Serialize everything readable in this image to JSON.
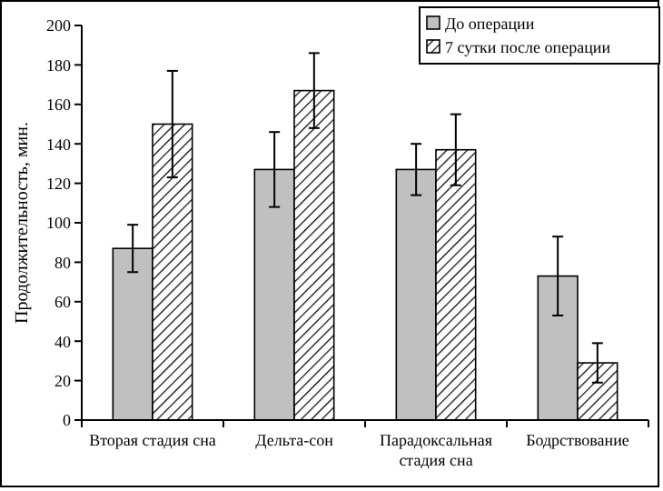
{
  "chart_data": {
    "type": "bar",
    "ylabel": "Продолжительность, мин.",
    "categories": [
      "Вторая стадия сна",
      "Дельта-сон",
      "Парадоксальная стадия сна",
      "Бодрствование"
    ],
    "series": [
      {
        "name": "До операции",
        "color": "#c0c0c0",
        "values": [
          87,
          127,
          127,
          73
        ],
        "errors": [
          12,
          19,
          13,
          20
        ]
      },
      {
        "name": "7 сутки после операции",
        "color": "#000000",
        "values": [
          150,
          167,
          137,
          29
        ],
        "errors": [
          27,
          19,
          18,
          10
        ]
      }
    ],
    "ylim": [
      0,
      200
    ],
    "yticks": [
      0,
      20,
      40,
      60,
      80,
      100,
      120,
      140,
      160,
      180,
      200
    ],
    "legend": "top right",
    "grid": false
  }
}
